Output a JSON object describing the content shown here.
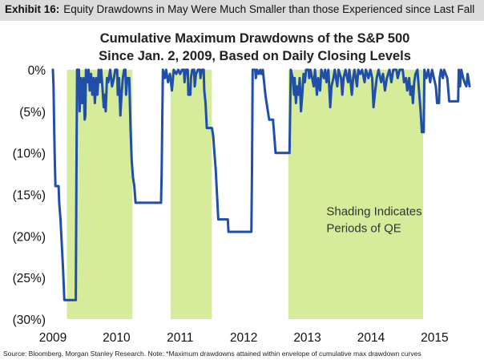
{
  "exhibit": {
    "label": "Exhibit 16:",
    "title": "Equity Drawdowns in May Were Much Smaller than those Experienced since Last Fall"
  },
  "source": "Source: Bloomberg, Morgan Stanley Research. Note: *Maximum drawdowns attained within envelope of cumulative max drawdown curves",
  "colors": {
    "line": "#1f4fa8",
    "shading": "#d6ec9b",
    "header_bg": "#dcdcdc"
  },
  "chart_data": {
    "type": "area",
    "title": "Cumulative Maximum Drawdowns of the S&P 500",
    "subtitle": "Since Jan. 2, 2009, Based on Daily Closing Levels",
    "xlabel": "",
    "ylabel": "",
    "xlim": [
      2009.0,
      2015.55
    ],
    "ylim": [
      -30,
      0
    ],
    "x_ticks": [
      2009,
      2010,
      2011,
      2012,
      2013,
      2014,
      2015
    ],
    "x_tick_labels": [
      "2009",
      "2010",
      "2011",
      "2012",
      "2013",
      "2014",
      "2015"
    ],
    "y_ticks": [
      0,
      -5,
      -10,
      -15,
      -20,
      -25,
      -30
    ],
    "y_tick_labels": [
      "0%",
      "(5%)",
      "(10%)",
      "(15%)",
      "(20%)",
      "(25%)",
      "(30%)"
    ],
    "annotation": {
      "lines": [
        "Shading Indicates",
        "Periods of QE"
      ],
      "x": 2013.3,
      "y": -17.5
    },
    "shaded_periods": [
      [
        2009.22,
        2010.25
      ],
      [
        2010.85,
        2011.5
      ],
      [
        2012.7,
        2014.82
      ]
    ],
    "series": [
      {
        "points": [
          [
            2009.0,
            0
          ],
          [
            2009.01,
            -2
          ],
          [
            2009.02,
            -7
          ],
          [
            2009.03,
            -11
          ],
          [
            2009.04,
            -14
          ],
          [
            2009.09,
            -14
          ],
          [
            2009.1,
            -16
          ],
          [
            2009.12,
            -18
          ],
          [
            2009.14,
            -21
          ],
          [
            2009.16,
            -24
          ],
          [
            2009.18,
            -27.7
          ],
          [
            2009.36,
            -27.7
          ],
          [
            2009.37,
            -12
          ],
          [
            2009.38,
            0
          ],
          [
            2009.41,
            0
          ],
          [
            2009.42,
            -5
          ],
          [
            2009.44,
            -1
          ],
          [
            2009.46,
            -4
          ],
          [
            2009.48,
            -1
          ],
          [
            2009.5,
            -6
          ],
          [
            2009.51,
            -5.5
          ],
          [
            2009.52,
            0
          ],
          [
            2009.54,
            -1.5
          ],
          [
            2009.56,
            0
          ],
          [
            2009.58,
            -2.5
          ],
          [
            2009.6,
            -0.5
          ],
          [
            2009.62,
            -3
          ],
          [
            2009.64,
            -1
          ],
          [
            2009.66,
            -4
          ],
          [
            2009.68,
            -1
          ],
          [
            2009.7,
            -3
          ],
          [
            2009.72,
            0
          ],
          [
            2009.74,
            -1.5
          ],
          [
            2009.76,
            0
          ],
          [
            2009.8,
            -4.5
          ],
          [
            2009.82,
            -3
          ],
          [
            2009.83,
            -5
          ],
          [
            2009.85,
            -1
          ],
          [
            2009.87,
            -1.5
          ],
          [
            2009.9,
            0
          ],
          [
            2009.93,
            -2
          ],
          [
            2009.96,
            -1
          ],
          [
            2009.98,
            0
          ],
          [
            2010.01,
            0
          ],
          [
            2010.02,
            -3
          ],
          [
            2010.04,
            -1
          ],
          [
            2010.06,
            -5.5
          ],
          [
            2010.08,
            -3
          ],
          [
            2010.1,
            -1
          ],
          [
            2010.12,
            0
          ],
          [
            2010.14,
            0
          ],
          [
            2010.15,
            -3
          ],
          [
            2010.17,
            -1
          ],
          [
            2010.2,
            -1
          ],
          [
            2010.21,
            -4
          ],
          [
            2010.22,
            -7
          ],
          [
            2010.24,
            -11
          ],
          [
            2010.26,
            -13
          ],
          [
            2010.28,
            -14
          ],
          [
            2010.3,
            -16
          ],
          [
            2010.7,
            -16
          ],
          [
            2010.71,
            -12
          ],
          [
            2010.72,
            -6
          ],
          [
            2010.73,
            0
          ],
          [
            2010.76,
            -1
          ],
          [
            2010.78,
            0
          ],
          [
            2010.81,
            -1.5
          ],
          [
            2010.84,
            -0.5
          ],
          [
            2010.87,
            -2.5
          ],
          [
            2010.9,
            0
          ],
          [
            2010.94,
            -0.5
          ],
          [
            2010.97,
            0
          ],
          [
            2011.0,
            -0.5
          ],
          [
            2011.03,
            0
          ],
          [
            2011.06,
            0
          ],
          [
            2011.07,
            -1.5
          ],
          [
            2011.09,
            0
          ],
          [
            2011.12,
            0
          ],
          [
            2011.13,
            -3
          ],
          [
            2011.16,
            -3
          ],
          [
            2011.17,
            -1
          ],
          [
            2011.19,
            0
          ],
          [
            2011.22,
            0
          ],
          [
            2011.23,
            -2
          ],
          [
            2011.25,
            -0.5
          ],
          [
            2011.28,
            0
          ],
          [
            2011.31,
            0
          ],
          [
            2011.32,
            -1
          ],
          [
            2011.34,
            0
          ],
          [
            2011.37,
            0
          ],
          [
            2011.38,
            -2.5
          ],
          [
            2011.4,
            -4
          ],
          [
            2011.42,
            -7
          ],
          [
            2011.5,
            -7
          ],
          [
            2011.52,
            -8
          ],
          [
            2011.54,
            -10
          ],
          [
            2011.56,
            -12
          ],
          [
            2011.58,
            -15
          ],
          [
            2011.6,
            -18
          ],
          [
            2011.75,
            -18
          ],
          [
            2011.76,
            -19.5
          ],
          [
            2012.12,
            -19.5
          ],
          [
            2012.13,
            -12
          ],
          [
            2012.14,
            0
          ],
          [
            2012.18,
            0
          ],
          [
            2012.19,
            -1
          ],
          [
            2012.21,
            0
          ],
          [
            2012.24,
            -0.5
          ],
          [
            2012.26,
            0
          ],
          [
            2012.28,
            -0.5
          ],
          [
            2012.3,
            0
          ],
          [
            2012.32,
            -1.5
          ],
          [
            2012.34,
            -3
          ],
          [
            2012.36,
            -4
          ],
          [
            2012.38,
            -5
          ],
          [
            2012.4,
            -6
          ],
          [
            2012.46,
            -6
          ],
          [
            2012.48,
            -8
          ],
          [
            2012.5,
            -10
          ],
          [
            2012.72,
            -10
          ],
          [
            2012.73,
            -5
          ],
          [
            2012.74,
            0
          ],
          [
            2012.77,
            -1
          ],
          [
            2012.79,
            -3
          ],
          [
            2012.8,
            -1
          ],
          [
            2012.82,
            -4
          ],
          [
            2012.84,
            -2
          ],
          [
            2012.86,
            -3
          ],
          [
            2012.88,
            -1
          ],
          [
            2012.9,
            -5
          ],
          [
            2012.92,
            -3
          ],
          [
            2012.94,
            -0.5
          ],
          [
            2012.96,
            -1.5
          ],
          [
            2012.98,
            0
          ],
          [
            2013.02,
            0
          ],
          [
            2013.03,
            -1
          ],
          [
            2013.05,
            0
          ],
          [
            2013.1,
            -2
          ],
          [
            2013.12,
            0
          ],
          [
            2013.15,
            -3
          ],
          [
            2013.17,
            -1
          ],
          [
            2013.2,
            -2.5
          ],
          [
            2013.22,
            0
          ],
          [
            2013.26,
            -1
          ],
          [
            2013.28,
            0
          ],
          [
            2013.3,
            -1.5
          ],
          [
            2013.33,
            0
          ],
          [
            2013.36,
            -4.5
          ],
          [
            2013.38,
            -2
          ],
          [
            2013.41,
            -1
          ],
          [
            2013.43,
            0
          ],
          [
            2013.47,
            -2
          ],
          [
            2013.49,
            0
          ],
          [
            2013.53,
            -1
          ],
          [
            2013.55,
            -3
          ],
          [
            2013.57,
            -1
          ],
          [
            2013.6,
            0
          ],
          [
            2013.64,
            -1.5
          ],
          [
            2013.66,
            0
          ],
          [
            2013.7,
            -3
          ],
          [
            2013.72,
            -1
          ],
          [
            2013.74,
            0
          ],
          [
            2013.78,
            -2
          ],
          [
            2013.8,
            0
          ],
          [
            2013.83,
            -0.5
          ],
          [
            2013.86,
            0
          ],
          [
            2013.9,
            -1.5
          ],
          [
            2013.92,
            0
          ],
          [
            2013.96,
            -1
          ],
          [
            2013.99,
            0
          ],
          [
            2014.02,
            -1
          ],
          [
            2014.04,
            -4.5
          ],
          [
            2014.06,
            -3
          ],
          [
            2014.09,
            -1
          ],
          [
            2014.12,
            0
          ],
          [
            2014.16,
            -1.5
          ],
          [
            2014.19,
            -0.5
          ],
          [
            2014.22,
            -2.5
          ],
          [
            2014.25,
            -1
          ],
          [
            2014.29,
            0
          ],
          [
            2014.32,
            -1.5
          ],
          [
            2014.35,
            0
          ],
          [
            2014.4,
            0
          ],
          [
            2014.42,
            -1
          ],
          [
            2014.45,
            0
          ],
          [
            2014.5,
            0
          ],
          [
            2014.52,
            -1.5
          ],
          [
            2014.55,
            -1
          ],
          [
            2014.57,
            -2.5
          ],
          [
            2014.6,
            -1
          ],
          [
            2014.62,
            -3
          ],
          [
            2014.64,
            -2
          ],
          [
            2014.66,
            -4
          ],
          [
            2014.68,
            -1.5
          ],
          [
            2014.7,
            -0.5
          ],
          [
            2014.73,
            0
          ],
          [
            2014.76,
            -3
          ],
          [
            2014.78,
            -5
          ],
          [
            2014.8,
            -7.5
          ],
          [
            2014.83,
            -7.5
          ],
          [
            2014.84,
            0
          ],
          [
            2014.87,
            -1
          ],
          [
            2014.9,
            0
          ],
          [
            2014.93,
            -1.5
          ],
          [
            2014.96,
            0
          ],
          [
            2014.99,
            -1
          ],
          [
            2015.02,
            -2
          ],
          [
            2015.04,
            -4
          ],
          [
            2015.07,
            -4
          ],
          [
            2015.08,
            -1
          ],
          [
            2015.1,
            0
          ],
          [
            2015.13,
            -1
          ],
          [
            2015.15,
            0
          ],
          [
            2015.2,
            -1
          ],
          [
            2015.23,
            -3.8
          ],
          [
            2015.37,
            -3.8
          ],
          [
            2015.38,
            0
          ],
          [
            2015.4,
            -2
          ],
          [
            2015.42,
            0
          ],
          [
            2015.45,
            -1
          ],
          [
            2015.47,
            -1.5
          ],
          [
            2015.5,
            -2
          ],
          [
            2015.52,
            -0.5
          ],
          [
            2015.55,
            -2
          ]
        ]
      }
    ]
  }
}
